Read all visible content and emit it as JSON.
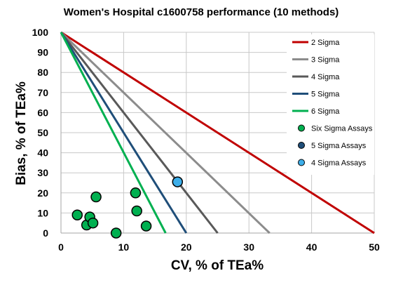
{
  "chart_data": {
    "type": "scatter",
    "title": "Women's Hospital c1600758 performance (10 methods)",
    "xlabel": "CV, % of TEa%",
    "ylabel": "Bias, % of TEa%",
    "xlim": [
      0,
      50
    ],
    "ylim": [
      0,
      100
    ],
    "x_ticks": [
      "0",
      "10",
      "20",
      "30",
      "40",
      "50"
    ],
    "y_ticks": [
      "0",
      "10",
      "20",
      "30",
      "40",
      "50",
      "60",
      "70",
      "80",
      "90",
      "100"
    ],
    "grid": true,
    "legend_position": "right",
    "lines": [
      {
        "name": "2 Sigma",
        "color": "#c00000",
        "x_intercept": 50
      },
      {
        "name": "3 Sigma",
        "color": "#8c8c8c",
        "x_intercept": 33.3
      },
      {
        "name": "4 Sigma",
        "color": "#595959",
        "x_intercept": 25
      },
      {
        "name": "5 Sigma",
        "color": "#1f4e79",
        "x_intercept": 20
      },
      {
        "name": "6 Sigma",
        "color": "#00b050",
        "x_intercept": 16.7
      }
    ],
    "series": [
      {
        "name": "Six Sigma Assays",
        "color": "#00b050",
        "points": [
          {
            "x": 2.6,
            "y": 9
          },
          {
            "x": 4.1,
            "y": 4
          },
          {
            "x": 4.6,
            "y": 8
          },
          {
            "x": 5.1,
            "y": 5
          },
          {
            "x": 5.6,
            "y": 18
          },
          {
            "x": 8.8,
            "y": 0
          },
          {
            "x": 11.9,
            "y": 20
          },
          {
            "x": 12.1,
            "y": 11
          },
          {
            "x": 13.6,
            "y": 3.5
          }
        ]
      },
      {
        "name": "5 Sigma Assays",
        "color": "#1f4e79",
        "points": []
      },
      {
        "name": "4 Sigma Assays",
        "color": "#3daee9",
        "points": [
          {
            "x": 18.6,
            "y": 25.5
          }
        ]
      }
    ]
  }
}
